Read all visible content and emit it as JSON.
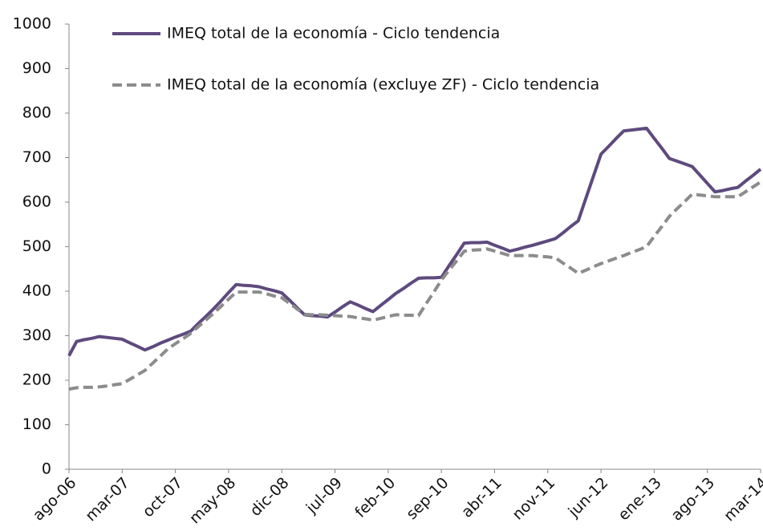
{
  "chart_data": {
    "type": "line",
    "categories": [
      "ago-06",
      null,
      null,
      null,
      null,
      null,
      null,
      "mar-07",
      null,
      null,
      null,
      null,
      null,
      null,
      "oct-07",
      null,
      null,
      null,
      null,
      null,
      null,
      "may-08",
      null,
      null,
      null,
      null,
      null,
      null,
      "dic-08",
      null,
      null,
      null,
      null,
      null,
      null,
      "jul-09",
      null,
      null,
      null,
      null,
      null,
      null,
      "feb-10",
      null,
      null,
      null,
      null,
      null,
      null,
      "sep-10",
      null,
      null,
      null,
      null,
      null,
      null,
      "abr-11",
      null,
      null,
      null,
      null,
      null,
      null,
      "nov-11",
      null,
      null,
      null,
      null,
      null,
      null,
      "jun-12",
      null,
      null,
      null,
      null,
      null,
      null,
      "ene-13",
      null,
      null,
      null,
      null,
      null,
      null,
      "ago-13",
      null,
      null,
      null,
      null,
      null,
      null,
      "mar-14"
    ],
    "series": [
      {
        "name": "IMEQ total de la economía - Ciclo tendencia",
        "color": "#5e4a7e",
        "dashed": false,
        "values": [
          255,
          287,
          291,
          294,
          298,
          296,
          294,
          292,
          284,
          276,
          268,
          275,
          283,
          290,
          297,
          303,
          310,
          327,
          343,
          360,
          378,
          397,
          415,
          413,
          412,
          410,
          405,
          401,
          396,
          380,
          363,
          347,
          345,
          344,
          342,
          353,
          365,
          376,
          369,
          361,
          354,
          368,
          381,
          395,
          406,
          418,
          429,
          430,
          430,
          431,
          457,
          482,
          508,
          509,
          509,
          510,
          503,
          497,
          490,
          494,
          499,
          503,
          508,
          513,
          518,
          531,
          545,
          558,
          608,
          658,
          708,
          725,
          743,
          760,
          762,
          764,
          766,
          743,
          721,
          698,
          692,
          686,
          680,
          661,
          642,
          623,
          626,
          630,
          633,
          647,
          660,
          674
        ]
      },
      {
        "name": "IMEQ total de la economía (excluye ZF) - Ciclo tendencia",
        "color": "#8c8c8c",
        "dashed": true,
        "values": [
          180,
          183,
          184,
          184,
          185,
          187,
          190,
          192,
          202,
          212,
          222,
          238,
          254,
          270,
          282,
          293,
          305,
          320,
          335,
          350,
          366,
          382,
          398,
          398,
          398,
          398,
          394,
          389,
          385,
          373,
          360,
          348,
          347,
          347,
          346,
          345,
          344,
          343,
          340,
          338,
          335,
          339,
          343,
          347,
          346,
          346,
          345,
          372,
          398,
          425,
          447,
          468,
          490,
          492,
          493,
          495,
          490,
          485,
          480,
          480,
          480,
          480,
          478,
          477,
          475,
          463,
          452,
          440,
          447,
          455,
          462,
          468,
          474,
          480,
          487,
          493,
          500,
          523,
          545,
          568,
          585,
          601,
          618,
          616,
          614,
          612,
          612,
          612,
          612,
          623,
          634,
          645
        ]
      }
    ],
    "ylim": [
      0,
      1000
    ],
    "yticks": [
      0,
      100,
      200,
      300,
      400,
      500,
      600,
      700,
      800,
      900,
      1000
    ],
    "grid": false
  }
}
